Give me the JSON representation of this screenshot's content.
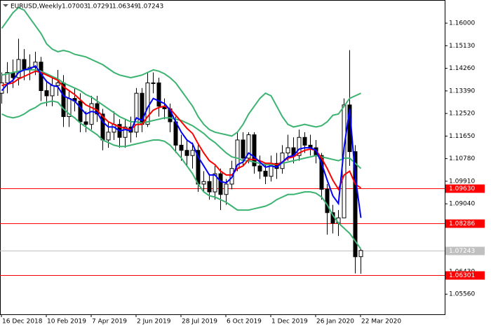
{
  "chart_data": {
    "type": "candlestick",
    "title": "EURUSD,Weekly",
    "categories": [
      "16 Dec 2018",
      null,
      null,
      null,
      null,
      null,
      null,
      null,
      "10 Feb 2019",
      null,
      null,
      null,
      null,
      null,
      null,
      null,
      "7 Apr 2019",
      null,
      null,
      null,
      null,
      null,
      null,
      null,
      "2 Jun 2019",
      null,
      null,
      null,
      null,
      null,
      null,
      null,
      "28 Jul 2019",
      null,
      null,
      null,
      null,
      null,
      null,
      null,
      "6 Oct 2019",
      null,
      null,
      null,
      null,
      null,
      null,
      null,
      "1 Dec 2019",
      null,
      null,
      null,
      null,
      null,
      null,
      null,
      "26 Jan 2020",
      null,
      null,
      null,
      null,
      null,
      null,
      null,
      "22 Mar 2020"
    ],
    "open": [
      1.133,
      1.137,
      1.141,
      1.139,
      1.146,
      1.142,
      1.143,
      1.145,
      1.134,
      1.132,
      1.136,
      1.137,
      1.124,
      1.131,
      1.13,
      1.122,
      1.121,
      1.129,
      1.125,
      1.115,
      1.118,
      1.121,
      1.116,
      1.12,
      1.118,
      1.133,
      1.121,
      1.137,
      1.137,
      1.128,
      1.127,
      1.122,
      1.113,
      1.111,
      1.109,
      1.111,
      1.098,
      1.099,
      1.095,
      1.102,
      1.094,
      1.098,
      1.104,
      1.115,
      1.108,
      1.117,
      1.105,
      1.103,
      1.101,
      1.106,
      1.104,
      1.11,
      1.112,
      1.109,
      1.116,
      1.113,
      1.112,
      1.109,
      1.096,
      1.087,
      1.083,
      1.085,
      1.1285,
      1.1105,
      1.07003
    ],
    "high": [
      1.141,
      1.145,
      1.146,
      1.154,
      1.15,
      1.148,
      1.149,
      1.147,
      1.138,
      1.139,
      1.142,
      1.14,
      1.134,
      1.135,
      1.133,
      1.126,
      1.132,
      1.132,
      1.127,
      1.122,
      1.126,
      1.123,
      1.123,
      1.124,
      1.135,
      1.135,
      1.141,
      1.141,
      1.139,
      1.131,
      1.129,
      1.124,
      1.117,
      1.115,
      1.114,
      1.113,
      1.103,
      1.102,
      1.105,
      1.104,
      1.1,
      1.107,
      1.118,
      1.118,
      1.118,
      1.118,
      1.109,
      1.106,
      1.109,
      1.11,
      1.113,
      1.117,
      1.116,
      1.119,
      1.118,
      1.117,
      1.115,
      1.11,
      1.098,
      1.09,
      1.088,
      1.131,
      1.1496,
      1.113,
      1.07291
    ],
    "low": [
      1.129,
      1.133,
      1.135,
      1.136,
      1.138,
      1.138,
      1.14,
      1.13,
      1.128,
      1.128,
      1.132,
      1.12,
      1.12,
      1.126,
      1.118,
      1.118,
      1.119,
      1.122,
      1.111,
      1.112,
      1.115,
      1.112,
      1.112,
      1.114,
      1.116,
      1.118,
      1.12,
      1.133,
      1.124,
      1.123,
      1.118,
      1.11,
      1.107,
      1.105,
      1.104,
      1.095,
      1.095,
      1.092,
      1.092,
      1.088,
      1.09,
      1.096,
      1.103,
      1.105,
      1.106,
      1.102,
      1.1,
      1.098,
      1.099,
      1.1,
      1.102,
      1.107,
      1.106,
      1.107,
      1.11,
      1.109,
      1.106,
      1.092,
      1.0785,
      1.079,
      1.078,
      1.085,
      1.105,
      1.0636,
      1.06349
    ],
    "close": [
      1.137,
      1.141,
      1.139,
      1.146,
      1.142,
      1.143,
      1.145,
      1.134,
      1.132,
      1.136,
      1.137,
      1.124,
      1.131,
      1.13,
      1.122,
      1.121,
      1.129,
      1.125,
      1.115,
      1.118,
      1.121,
      1.116,
      1.12,
      1.118,
      1.133,
      1.121,
      1.137,
      1.137,
      1.128,
      1.127,
      1.122,
      1.113,
      1.111,
      1.109,
      1.111,
      1.098,
      1.099,
      1.095,
      1.102,
      1.094,
      1.098,
      1.104,
      1.115,
      1.108,
      1.117,
      1.105,
      1.103,
      1.101,
      1.106,
      1.104,
      1.11,
      1.112,
      1.109,
      1.116,
      1.113,
      1.112,
      1.109,
      1.096,
      1.087,
      1.083,
      1.085,
      1.1285,
      1.1105,
      1.07,
      1.07243
    ],
    "up_color": "#ffffff",
    "down_color": "#000000",
    "overlays": [
      {
        "color": "#3cb371",
        "values": [
          1.158,
          1.161,
          1.164,
          1.166,
          1.165,
          1.162,
          1.159,
          1.156,
          1.152,
          1.15,
          1.149,
          1.1495,
          1.149,
          1.148,
          1.1475,
          1.147,
          1.146,
          1.145,
          1.144,
          1.1425,
          1.141,
          1.14,
          1.1395,
          1.139,
          1.1395,
          1.14,
          1.141,
          1.142,
          1.1415,
          1.1405,
          1.139,
          1.137,
          1.134,
          1.131,
          1.128,
          1.124,
          1.121,
          1.119,
          1.118,
          1.1175,
          1.117,
          1.1165,
          1.118,
          1.121,
          1.125,
          1.128,
          1.131,
          1.133,
          1.132,
          1.128,
          1.124,
          1.121,
          1.12,
          1.1205,
          1.121,
          1.1205,
          1.12,
          1.1205,
          1.122,
          1.1245,
          1.125,
          1.128,
          1.131,
          1.132,
          1.133
        ]
      },
      {
        "color": "#3cb371",
        "values": [
          1.14,
          1.1405,
          1.141,
          1.1415,
          1.142,
          1.142,
          1.142,
          1.1415,
          1.1405,
          1.1395,
          1.1385,
          1.137,
          1.136,
          1.135,
          1.134,
          1.1325,
          1.1315,
          1.13,
          1.1285,
          1.127,
          1.1255,
          1.124,
          1.123,
          1.122,
          1.122,
          1.1215,
          1.122,
          1.1225,
          1.123,
          1.1235,
          1.1235,
          1.123,
          1.1225,
          1.1215,
          1.1205,
          1.119,
          1.1175,
          1.1155,
          1.114,
          1.112,
          1.11,
          1.1085,
          1.108,
          1.107,
          1.107,
          1.1065,
          1.106,
          1.1055,
          1.1055,
          1.1055,
          1.106,
          1.1065,
          1.107,
          1.1075,
          1.108,
          1.1085,
          1.109,
          1.1085,
          1.108,
          1.1075,
          1.107,
          1.108,
          1.108,
          1.106,
          1.104
        ]
      },
      {
        "color": "#3cb371",
        "values": [
          1.125,
          1.124,
          1.1235,
          1.124,
          1.125,
          1.1265,
          1.1275,
          1.129,
          1.1295,
          1.13,
          1.1295,
          1.127,
          1.125,
          1.1235,
          1.1215,
          1.12,
          1.1185,
          1.117,
          1.115,
          1.114,
          1.113,
          1.1125,
          1.1125,
          1.113,
          1.1135,
          1.114,
          1.1145,
          1.115,
          1.115,
          1.1145,
          1.113,
          1.1105,
          1.108,
          1.105,
          1.102,
          1.098,
          1.095,
          1.0935,
          1.093,
          1.092,
          1.091,
          1.0895,
          1.088,
          1.088,
          1.088,
          1.0885,
          1.089,
          1.0895,
          1.0905,
          1.092,
          1.093,
          1.094,
          1.094,
          1.0945,
          1.095,
          1.095,
          1.0945,
          1.093,
          1.09,
          1.086,
          1.083,
          1.081,
          1.079,
          1.076,
          1.073
        ]
      },
      {
        "color": "#ff0000",
        "values": [
          1.136,
          1.1365,
          1.137,
          1.1385,
          1.1395,
          1.1405,
          1.1415,
          1.141,
          1.14,
          1.139,
          1.138,
          1.1355,
          1.134,
          1.1325,
          1.1305,
          1.1285,
          1.1275,
          1.1265,
          1.124,
          1.122,
          1.121,
          1.12,
          1.1195,
          1.119,
          1.121,
          1.121,
          1.124,
          1.1265,
          1.1275,
          1.128,
          1.127,
          1.1245,
          1.122,
          1.1195,
          1.1175,
          1.1135,
          1.11,
          1.107,
          1.1055,
          1.103,
          1.1015,
          1.1015,
          1.104,
          1.105,
          1.1075,
          1.1075,
          1.107,
          1.106,
          1.106,
          1.1055,
          1.1065,
          1.108,
          1.1085,
          1.11,
          1.111,
          1.1115,
          1.111,
          1.108,
          1.104,
          1.0995,
          1.096,
          1.1015,
          1.103,
          1.098,
          1.0965
        ]
      },
      {
        "color": "#0000ff",
        "values": [
          1.134,
          1.1365,
          1.138,
          1.141,
          1.142,
          1.1425,
          1.1435,
          1.1405,
          1.1375,
          1.136,
          1.1355,
          1.132,
          1.131,
          1.13,
          1.1275,
          1.125,
          1.126,
          1.1255,
          1.122,
          1.12,
          1.12,
          1.1185,
          1.119,
          1.1185,
          1.1235,
          1.1225,
          1.1275,
          1.131,
          1.13,
          1.129,
          1.1265,
          1.122,
          1.118,
          1.115,
          1.1135,
          1.1085,
          1.105,
          1.1015,
          1.1015,
          1.099,
          1.0985,
          1.1005,
          1.1055,
          1.1065,
          1.11,
          1.1085,
          1.1065,
          1.1045,
          1.105,
          1.1045,
          1.1065,
          1.1085,
          1.109,
          1.1115,
          1.112,
          1.112,
          1.111,
          1.106,
          1.0995,
          1.0935,
          1.0905,
          1.112,
          1.127,
          1.101,
          1.085
        ]
      }
    ],
    "levels": [
      {
        "value": 1.0963,
        "label": "1.09630",
        "color": "#ff0000"
      },
      {
        "value": 1.08286,
        "label": "1.08286",
        "color": "#ff0000"
      },
      {
        "value": 1.07243,
        "label": "1.07243",
        "color": "#c0c0c0"
      },
      {
        "value": 1.06301,
        "label": "1.06301",
        "color": "#ff0000"
      }
    ],
    "ylim": [
      1.04784,
      1.16892
    ],
    "yticks": [
      {
        "value": 1.16,
        "label": "1.16000"
      },
      {
        "value": 1.1513,
        "label": "1.15130"
      },
      {
        "value": 1.1426,
        "label": "1.14260"
      },
      {
        "value": 1.1339,
        "label": "1.13390"
      },
      {
        "value": 1.1252,
        "label": "1.12520"
      },
      {
        "value": 1.1165,
        "label": "1.11650"
      },
      {
        "value": 1.1078,
        "label": "1.10780"
      },
      {
        "value": 1.0991,
        "label": "1.09910"
      },
      {
        "value": 1.0904,
        "label": "1.09040"
      },
      {
        "value": 1.0643,
        "label": "1.06430"
      },
      {
        "value": 1.0556,
        "label": "1.05560"
      }
    ]
  }
}
